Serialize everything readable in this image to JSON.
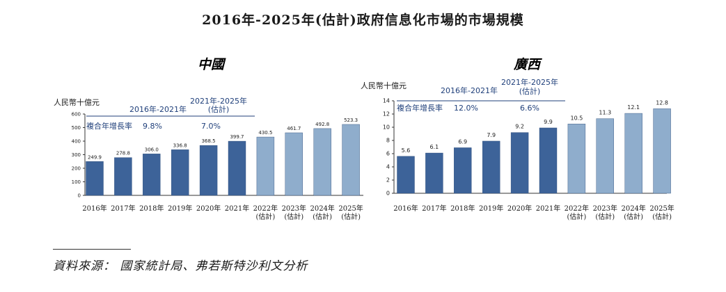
{
  "page_title": "2016年-2025年(估計)政府信息化市場的市場規模",
  "source_label": "資料來源：",
  "source_text": "國家統計局、弗若斯特沙利文分析",
  "colors": {
    "actual": "#3d6399",
    "forecast": "#8fadcc",
    "axis": "#333333",
    "annotation": "#1f3f7a"
  },
  "chart_data": [
    {
      "type": "bar",
      "title": "中國",
      "ylabel": "人民幣十億元",
      "ylim": [
        0,
        600
      ],
      "yticks": [
        0,
        100,
        200,
        300,
        400,
        500,
        600
      ],
      "categories": [
        "2016年",
        "2017年",
        "2018年",
        "2019年",
        "2020年",
        "2021年",
        "2022年",
        "2023年",
        "2024年",
        "2025年"
      ],
      "category_notes": [
        "",
        "",
        "",
        "",
        "",
        "",
        "(估計)",
        "(估計)",
        "(估計)",
        "(估計)"
      ],
      "values": [
        249.9,
        278.8,
        306.0,
        336.8,
        368.5,
        399.7,
        430.5,
        461.7,
        492.8,
        523.3
      ],
      "value_labels": [
        "249.9",
        "278.8",
        "306.0",
        "336.8",
        "368.5",
        "399.7",
        "430.5",
        "461.7",
        "492.8",
        "523.3"
      ],
      "forecast_from_index": 6,
      "cagr_label": "複合年增長率",
      "period1": "2016年-2021年",
      "period2": "2021年-2025年",
      "period2_note": "(估計)",
      "cagr1": "9.8%",
      "cagr2": "7.0%"
    },
    {
      "type": "bar",
      "title": "廣西",
      "ylabel": "人民幣十億元",
      "ylim": [
        0,
        14
      ],
      "yticks": [
        0,
        2,
        4,
        6,
        8,
        10,
        12,
        14
      ],
      "categories": [
        "2016年",
        "2017年",
        "2018年",
        "2019年",
        "2020年",
        "2021年",
        "2022年",
        "2023年",
        "2024年",
        "2025年"
      ],
      "category_notes": [
        "",
        "",
        "",
        "",
        "",
        "",
        "(估計)",
        "(估計)",
        "(估計)",
        "(估計)"
      ],
      "values": [
        5.6,
        6.1,
        6.9,
        7.9,
        9.2,
        9.9,
        10.5,
        11.3,
        12.1,
        12.8
      ],
      "value_labels": [
        "5.6",
        "6.1",
        "6.9",
        "7.9",
        "9.2",
        "9.9",
        "10.5",
        "11.3",
        "12.1",
        "12.8"
      ],
      "forecast_from_index": 6,
      "cagr_label": "複合年增長率",
      "period1": "2016年-2021年",
      "period2": "2021年-2025年",
      "period2_note": "(估計)",
      "cagr1": "12.0%",
      "cagr2": "6.6%"
    }
  ]
}
